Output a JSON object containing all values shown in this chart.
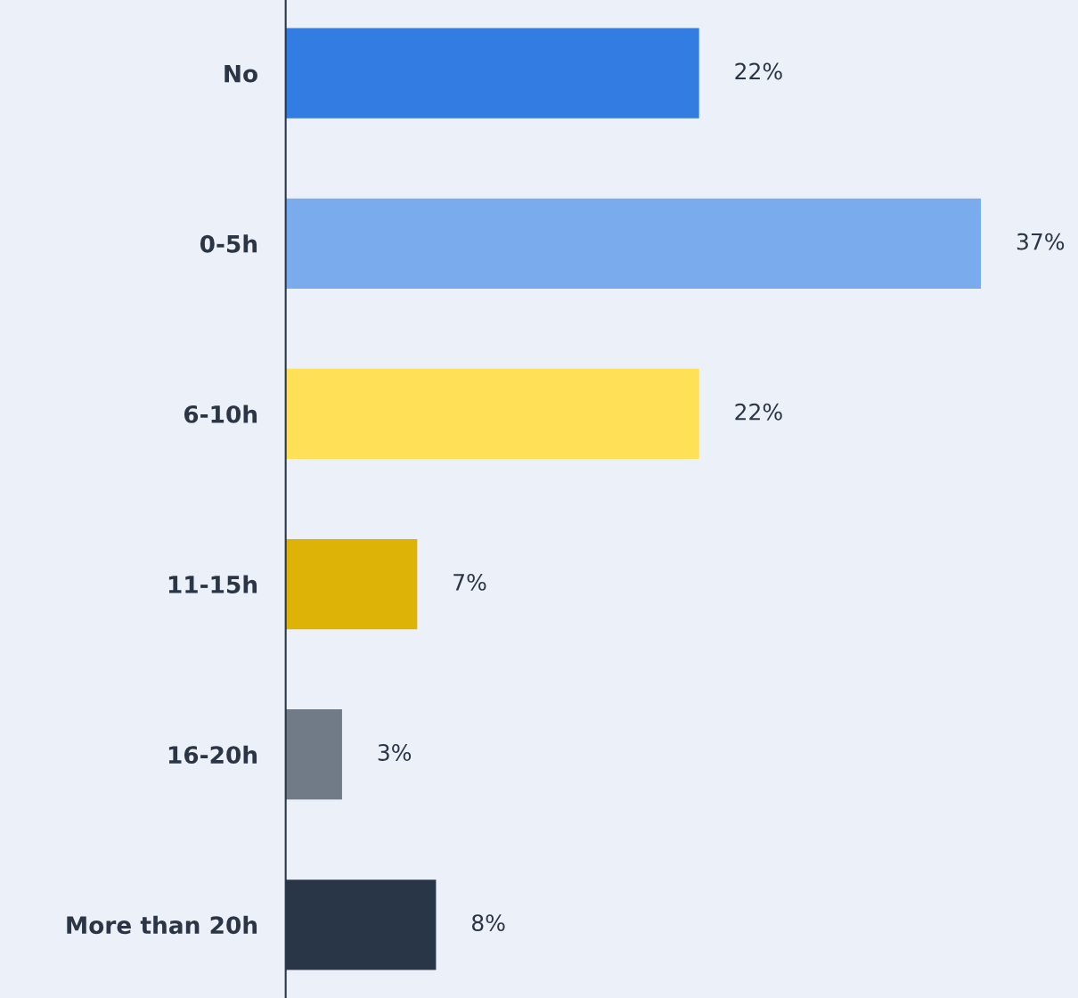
{
  "chart_data": {
    "type": "bar",
    "orientation": "horizontal",
    "categories": [
      "No",
      "0-5h",
      "6-10h",
      "11-15h",
      "16-20h",
      "More than 20h"
    ],
    "values": [
      22,
      37,
      22,
      7,
      3,
      8
    ],
    "value_labels": [
      "22%",
      "37%",
      "22%",
      "7%",
      "3%",
      "8%"
    ],
    "colors": [
      "#337ce2",
      "#7aabec",
      "#ffe056",
      "#dcb306",
      "#707b87",
      "#293647"
    ],
    "grid": false,
    "legend": false
  }
}
